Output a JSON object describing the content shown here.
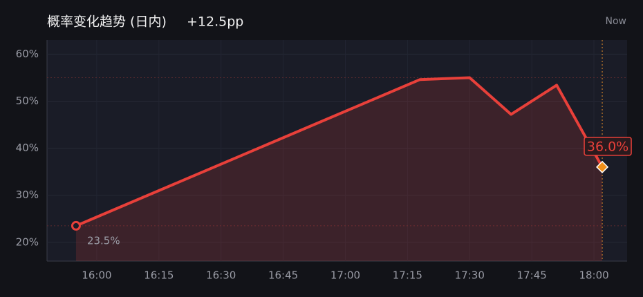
{
  "chart_data": {
    "type": "line",
    "title": "概率变化趋势 (日内)",
    "change": "+12.5pp",
    "now_label": "Now",
    "x": [
      "15:55",
      "17:18",
      "17:30",
      "17:40",
      "17:51",
      "18:02"
    ],
    "values": [
      23.5,
      54.6,
      55.0,
      47.2,
      53.4,
      36.0
    ],
    "value_labels": [
      "23.5%",
      null,
      null,
      null,
      null,
      "36.0%"
    ],
    "color": "#e8403a",
    "xlim": [
      "15:48",
      "18:08"
    ],
    "xticks": [
      "16:00",
      "16:15",
      "16:30",
      "16:45",
      "17:00",
      "17:15",
      "17:30",
      "17:45",
      "18:00"
    ],
    "ylim": [
      16,
      63
    ],
    "yticks": [
      {
        "value": 20,
        "label": "20%"
      },
      {
        "value": 30,
        "label": "30%"
      },
      {
        "value": 40,
        "label": "40%"
      },
      {
        "value": 50,
        "label": "50%"
      },
      {
        "value": 60,
        "label": "60%"
      }
    ],
    "grid": true
  }
}
